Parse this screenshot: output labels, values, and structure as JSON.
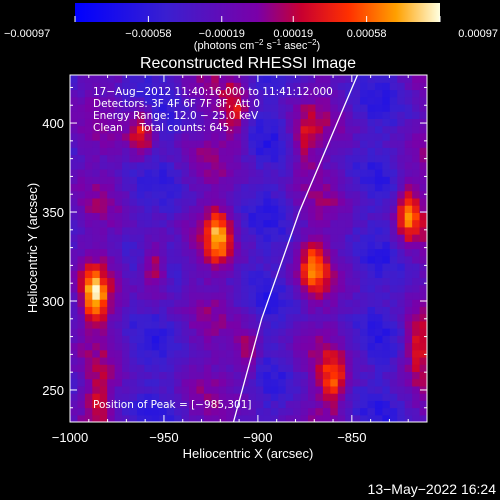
{
  "chart_data": {
    "type": "heatmap",
    "title": "Reconstructed RHESSI Image",
    "xlabel": "Heliocentric X (arcsec)",
    "ylabel": "Heliocentric Y (arcsec)",
    "xlim": [
      -1000,
      -810
    ],
    "ylim": [
      232,
      427
    ],
    "x_ticks": [
      -1000,
      -950,
      -900,
      -850
    ],
    "x_tick_labels": [
      "−1000",
      "−950",
      "−900",
      "−850"
    ],
    "y_ticks": [
      250,
      300,
      350,
      400
    ],
    "y_tick_labels": [
      "250",
      "300",
      "350",
      "400"
    ],
    "colorbar": {
      "min": -0.00097,
      "max": 0.00097,
      "ticks": [
        -0.00097,
        -0.00058,
        -0.00019,
        0.00019,
        0.00058,
        0.00097
      ],
      "tick_labels": [
        "−0.00097",
        "−0.00058",
        "−0.00019",
        "0.00019",
        "0.00058",
        "0.00097"
      ],
      "units_prefix": "(photons cm",
      "units_exp1": "−2",
      "units_mid": " s",
      "units_exp2": "−1",
      "units_mid2": " asec",
      "units_exp3": "−2",
      "units_suffix": ")"
    },
    "info_lines": [
      "17−Aug−2012 11:40:16.000 to 11:41:12.000",
      "Detectors: 3F 4F 6F 7F 8F, Att 0",
      "Energy Range: 12.0 − 25.0 keV",
      "Clean     Total counts: 645."
    ],
    "peak_label": "Position of Peak = [−985,301]",
    "peak_position": [
      -985,
      301
    ],
    "hot_spots": [
      {
        "x": -987,
        "y": 302,
        "value": 0.00097
      },
      {
        "x": -955,
        "y": 320,
        "value": 0.00075
      },
      {
        "x": -962,
        "y": 395,
        "value": 0.0007
      },
      {
        "x": -921,
        "y": 337,
        "value": 0.00082
      },
      {
        "x": -912,
        "y": 405,
        "value": 0.0006
      },
      {
        "x": -905,
        "y": 270,
        "value": 0.0005
      },
      {
        "x": -870,
        "y": 320,
        "value": 0.0007
      },
      {
        "x": -860,
        "y": 255,
        "value": 0.00065
      },
      {
        "x": -875,
        "y": 390,
        "value": 0.00045
      },
      {
        "x": -820,
        "y": 350,
        "value": 0.00088
      },
      {
        "x": -815,
        "y": 275,
        "value": 0.0006
      },
      {
        "x": -985,
        "y": 245,
        "value": 0.0004
      }
    ],
    "limb_arc": [
      [
        -913,
        232
      ],
      [
        -898,
        290
      ],
      [
        -878,
        350
      ],
      [
        -847,
        427
      ]
    ],
    "timestamp": "13−May−2022 16:24"
  }
}
